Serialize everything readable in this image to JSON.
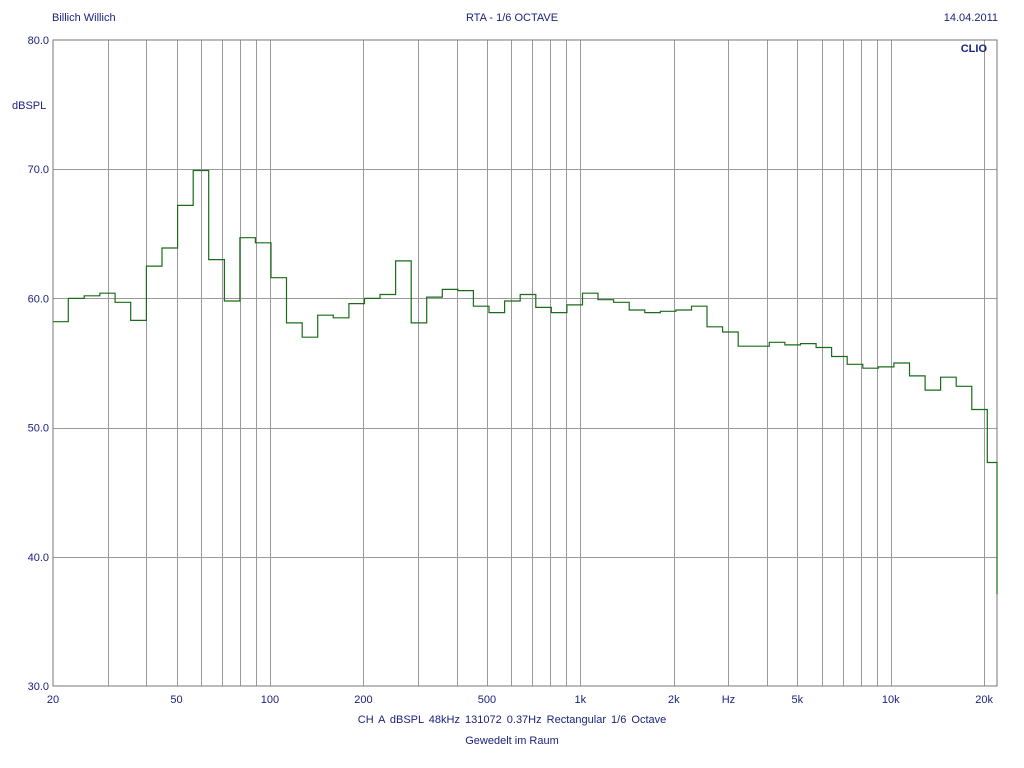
{
  "header": {
    "left": "Billich Willich",
    "center": "RTA - 1/6 OCTAVE",
    "right": "14.04.2011"
  },
  "brand": "CLIO",
  "footer": {
    "line1": "CH A   dBSPL   48kHz   131072   0.37Hz   Rectangular   1/6 Octave",
    "line2": "Gewedelt im Raum"
  },
  "colors": {
    "trace": "#1a6b1a",
    "grid": "#9a9a9a",
    "text": "#1a237e"
  },
  "chart_data": {
    "type": "line",
    "title": "RTA - 1/6 OCTAVE",
    "ylabel": "dBSPL",
    "xlabel": "Hz",
    "x_scale": "log",
    "xlim": [
      20,
      22000
    ],
    "ylim": [
      30,
      80
    ],
    "y_ticks": [
      "80.0",
      "70.0",
      "60.0",
      "50.0",
      "40.0",
      "30.0"
    ],
    "x_ticks": [
      {
        "value": 20,
        "label": "20"
      },
      {
        "value": 50,
        "label": "50"
      },
      {
        "value": 100,
        "label": "100"
      },
      {
        "value": 200,
        "label": "200"
      },
      {
        "value": 500,
        "label": "500"
      },
      {
        "value": 1000,
        "label": "1k"
      },
      {
        "value": 2000,
        "label": "2k"
      },
      {
        "value": 3000,
        "label": "Hz"
      },
      {
        "value": 5000,
        "label": "5k"
      },
      {
        "value": 10000,
        "label": "10k"
      },
      {
        "value": 20000,
        "label": "20k"
      }
    ],
    "grid": true,
    "series": [
      {
        "style": "step",
        "x": [
          20,
          22.4,
          25.2,
          28.3,
          31.7,
          35.6,
          40,
          44.9,
          50.4,
          56.6,
          63.5,
          71.3,
          80,
          89.8,
          100.8,
          113.1,
          127,
          142.5,
          160,
          179.6,
          201.6,
          226.3,
          254,
          285.1,
          320,
          359.2,
          403.2,
          452.5,
          508,
          570.2,
          640,
          718.4,
          806.3,
          905,
          1016,
          1140,
          1280,
          1437,
          1613,
          1810,
          2032,
          2281,
          2560,
          2874,
          3225,
          3620,
          4064,
          4561,
          5120,
          5747,
          6451,
          7241,
          8127,
          9123,
          10240,
          11494,
          12902,
          14482,
          16255,
          18246,
          20480,
          22000
        ],
        "y": [
          58.2,
          60.0,
          60.2,
          60.4,
          59.7,
          58.3,
          62.5,
          63.9,
          67.2,
          69.9,
          63.0,
          59.8,
          64.7,
          64.3,
          61.6,
          58.1,
          57.0,
          58.7,
          58.5,
          59.6,
          60.0,
          60.3,
          62.9,
          58.1,
          60.1,
          60.7,
          60.6,
          59.4,
          58.9,
          59.8,
          60.3,
          59.3,
          58.9,
          59.5,
          60.4,
          59.9,
          59.7,
          59.1,
          58.9,
          59.0,
          59.1,
          59.4,
          57.8,
          57.4,
          56.3,
          56.3,
          56.6,
          56.4,
          56.5,
          56.2,
          55.5,
          54.9,
          54.6,
          54.7,
          55.0,
          54.0,
          52.9,
          53.9,
          53.2,
          51.4,
          47.3,
          37.1
        ]
      }
    ]
  }
}
